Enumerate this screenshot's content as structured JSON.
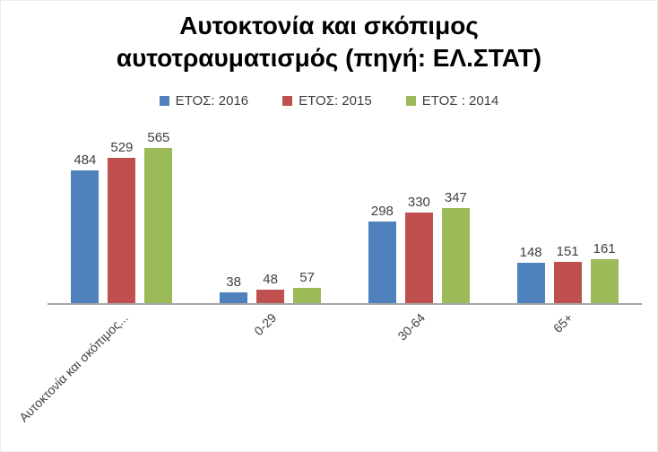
{
  "chart_data": {
    "type": "bar",
    "title": "Αυτοκτονία και σκόπιμος αυτοτραυματισμός (πηγή: ΕΛ.ΣΤΑΤ)",
    "categories": [
      "Αυτοκτονία και σκόπιμος...",
      "0-29",
      "30-64",
      "65+"
    ],
    "series": [
      {
        "name": "ΕΤΟΣ: 2016",
        "color": "#4F81BD",
        "values": [
          484,
          38,
          298,
          148
        ]
      },
      {
        "name": "ΕΤΟΣ: 2015",
        "color": "#C0504D",
        "values": [
          529,
          48,
          330,
          151
        ]
      },
      {
        "name": "ΕΤΟΣ : 2014",
        "color": "#9BBB59",
        "values": [
          565,
          57,
          347,
          161
        ]
      }
    ],
    "value_labels": true,
    "legend_position": "top",
    "grid": false,
    "ylim": [
      0,
      600
    ],
    "axis_line_color": "#A6A6A6",
    "label_color": "#404040"
  }
}
